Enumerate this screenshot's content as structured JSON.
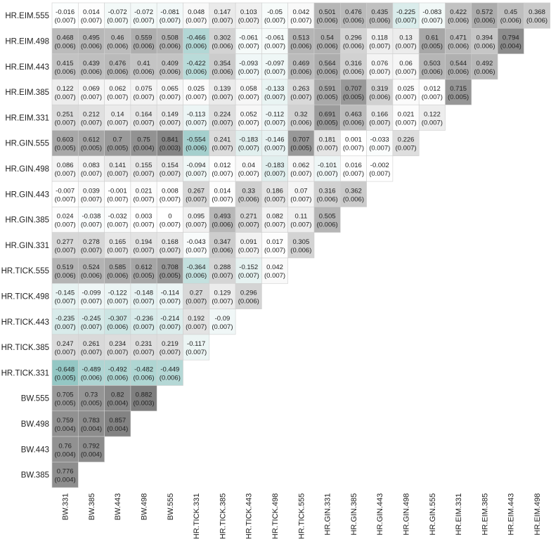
{
  "chart_data": {
    "type": "heatmap",
    "title": "",
    "xlabel": "",
    "ylabel": "",
    "color_scale": {
      "negative": "#5aa9a4",
      "zero": "#ffffff",
      "positive": "#6e6e6e"
    },
    "x_labels": [
      "BW.331",
      "BW.385",
      "BW.443",
      "BW.498",
      "BW.555",
      "HR.TICK.331",
      "HR.TICK.385",
      "HR.TICK.443",
      "HR.TICK.498",
      "HR.TICK.555",
      "HR.GIN.331",
      "HR.GIN.385",
      "HR.GIN.443",
      "HR.GIN.498",
      "HR.GIN.555",
      "HR.EIM.331",
      "HR.EIM.385",
      "HR.EIM.443",
      "HR.EIM.498"
    ],
    "rows": [
      {
        "label": "HR.EIM.555",
        "cells": [
          {
            "v": "-0.016",
            "se": "(0.007)"
          },
          {
            "v": "0.014",
            "se": "(0.007)"
          },
          {
            "v": "-0.072",
            "se": "(0.007)"
          },
          {
            "v": "-0.072",
            "se": "(0.007)"
          },
          {
            "v": "-0.081",
            "se": "(0.007)"
          },
          {
            "v": "0.048",
            "se": "(0.007)"
          },
          {
            "v": "0.147",
            "se": "(0.007)"
          },
          {
            "v": "0.103",
            "se": "(0.007)"
          },
          {
            "v": "-0.05",
            "se": "(0.007)"
          },
          {
            "v": "0.042",
            "se": "(0.007)"
          },
          {
            "v": "0.501",
            "se": "(0.006)"
          },
          {
            "v": "0.476",
            "se": "(0.006)"
          },
          {
            "v": "0.435",
            "se": "(0.006)"
          },
          {
            "v": "-0.225",
            "se": "(0.007)"
          },
          {
            "v": "-0.083",
            "se": "(0.007)"
          },
          {
            "v": "0.422",
            "se": "(0.006)"
          },
          {
            "v": "0.572",
            "se": "(0.006)"
          },
          {
            "v": "0.45",
            "se": "(0.006)"
          },
          {
            "v": "0.368",
            "se": "(0.006)"
          }
        ]
      },
      {
        "label": "HR.EIM.498",
        "cells": [
          {
            "v": "0.468",
            "se": "(0.006)"
          },
          {
            "v": "0.495",
            "se": "(0.006)"
          },
          {
            "v": "0.46",
            "se": "(0.006)"
          },
          {
            "v": "0.559",
            "se": "(0.006)"
          },
          {
            "v": "0.508",
            "se": "(0.006)"
          },
          {
            "v": "-0.466",
            "se": "(0.006)"
          },
          {
            "v": "0.302",
            "se": "(0.006)"
          },
          {
            "v": "-0.061",
            "se": "(0.007)"
          },
          {
            "v": "-0.061",
            "se": "(0.007)"
          },
          {
            "v": "0.513",
            "se": "(0.006)"
          },
          {
            "v": "0.54",
            "se": "(0.006)"
          },
          {
            "v": "0.296",
            "se": "(0.006)"
          },
          {
            "v": "0.118",
            "se": "(0.007)"
          },
          {
            "v": "0.13",
            "se": "(0.007)"
          },
          {
            "v": "0.61",
            "se": "(0.005)"
          },
          {
            "v": "0.471",
            "se": "(0.006)"
          },
          {
            "v": "0.394",
            "se": "(0.006)"
          },
          {
            "v": "0.794",
            "se": "(0.004)"
          }
        ]
      },
      {
        "label": "HR.EIM.443",
        "cells": [
          {
            "v": "0.415",
            "se": "(0.006)"
          },
          {
            "v": "0.439",
            "se": "(0.006)"
          },
          {
            "v": "0.476",
            "se": "(0.006)"
          },
          {
            "v": "0.41",
            "se": "(0.006)"
          },
          {
            "v": "0.409",
            "se": "(0.006)"
          },
          {
            "v": "-0.422",
            "se": "(0.006)"
          },
          {
            "v": "0.354",
            "se": "(0.006)"
          },
          {
            "v": "-0.093",
            "se": "(0.007)"
          },
          {
            "v": "-0.097",
            "se": "(0.007)"
          },
          {
            "v": "0.469",
            "se": "(0.006)"
          },
          {
            "v": "0.564",
            "se": "(0.006)"
          },
          {
            "v": "0.316",
            "se": "(0.006)"
          },
          {
            "v": "0.076",
            "se": "(0.007)"
          },
          {
            "v": "0.06",
            "se": "(0.007)"
          },
          {
            "v": "0.503",
            "se": "(0.006)"
          },
          {
            "v": "0.544",
            "se": "(0.006)"
          },
          {
            "v": "0.492",
            "se": "(0.006)"
          }
        ]
      },
      {
        "label": "HR.EIM.385",
        "cells": [
          {
            "v": "0.122",
            "se": "(0.007)"
          },
          {
            "v": "0.069",
            "se": "(0.007)"
          },
          {
            "v": "0.062",
            "se": "(0.007)"
          },
          {
            "v": "0.075",
            "se": "(0.007)"
          },
          {
            "v": "0.065",
            "se": "(0.007)"
          },
          {
            "v": "0.025",
            "se": "(0.007)"
          },
          {
            "v": "0.139",
            "se": "(0.007)"
          },
          {
            "v": "0.058",
            "se": "(0.007)"
          },
          {
            "v": "-0.133",
            "se": "(0.007)"
          },
          {
            "v": "0.263",
            "se": "(0.007)"
          },
          {
            "v": "0.591",
            "se": "(0.005)"
          },
          {
            "v": "0.707",
            "se": "(0.005)"
          },
          {
            "v": "0.319",
            "se": "(0.006)"
          },
          {
            "v": "0.025",
            "se": "(0.007)"
          },
          {
            "v": "0.012",
            "se": "(0.007)"
          },
          {
            "v": "0.715",
            "se": "(0.005)"
          }
        ]
      },
      {
        "label": "HR.EIM.331",
        "cells": [
          {
            "v": "0.251",
            "se": "(0.007)"
          },
          {
            "v": "0.212",
            "se": "(0.007)"
          },
          {
            "v": "0.14",
            "se": "(0.007)"
          },
          {
            "v": "0.164",
            "se": "(0.007)"
          },
          {
            "v": "0.149",
            "se": "(0.007)"
          },
          {
            "v": "-0.113",
            "se": "(0.007)"
          },
          {
            "v": "0.224",
            "se": "(0.007)"
          },
          {
            "v": "0.052",
            "se": "(0.007)"
          },
          {
            "v": "-0.112",
            "se": "(0.007)"
          },
          {
            "v": "0.32",
            "se": "(0.006)"
          },
          {
            "v": "0.691",
            "se": "(0.005)"
          },
          {
            "v": "0.463",
            "se": "(0.006)"
          },
          {
            "v": "0.166",
            "se": "(0.007)"
          },
          {
            "v": "0.021",
            "se": "(0.007)"
          },
          {
            "v": "0.122",
            "se": "(0.007)"
          }
        ]
      },
      {
        "label": "HR.GIN.555",
        "cells": [
          {
            "v": "0.603",
            "se": "(0.005)"
          },
          {
            "v": "0.612",
            "se": "(0.005)"
          },
          {
            "v": "0.7",
            "se": "(0.005)"
          },
          {
            "v": "0.75",
            "se": "(0.004)"
          },
          {
            "v": "0.841",
            "se": "(0.003)"
          },
          {
            "v": "-0.554",
            "se": "(0.006)"
          },
          {
            "v": "0.241",
            "se": "(0.007)"
          },
          {
            "v": "-0.183",
            "se": "(0.007)"
          },
          {
            "v": "-0.146",
            "se": "(0.007)"
          },
          {
            "v": "0.707",
            "se": "(0.005)"
          },
          {
            "v": "0.181",
            "se": "(0.007)"
          },
          {
            "v": "0.001",
            "se": "(0.007)"
          },
          {
            "v": "-0.033",
            "se": "(0.007)"
          },
          {
            "v": "0.226",
            "se": "(0.007)"
          }
        ]
      },
      {
        "label": "HR.GIN.498",
        "cells": [
          {
            "v": "0.086",
            "se": "(0.007)"
          },
          {
            "v": "0.083",
            "se": "(0.007)"
          },
          {
            "v": "0.141",
            "se": "(0.007)"
          },
          {
            "v": "0.155",
            "se": "(0.007)"
          },
          {
            "v": "0.154",
            "se": "(0.007)"
          },
          {
            "v": "-0.094",
            "se": "(0.007)"
          },
          {
            "v": "0.012",
            "se": "(0.007)"
          },
          {
            "v": "0.04",
            "se": "(0.007)"
          },
          {
            "v": "-0.183",
            "se": "(0.007)"
          },
          {
            "v": "0.062",
            "se": "(0.007)"
          },
          {
            "v": "-0.101",
            "se": "(0.007)"
          },
          {
            "v": "0.016",
            "se": "(0.007)"
          },
          {
            "v": "-0.002",
            "se": "(0.007)"
          }
        ]
      },
      {
        "label": "HR.GIN.443",
        "cells": [
          {
            "v": "-0.007",
            "se": "(0.007)"
          },
          {
            "v": "0.039",
            "se": "(0.007)"
          },
          {
            "v": "-0.001",
            "se": "(0.007)"
          },
          {
            "v": "0.021",
            "se": "(0.007)"
          },
          {
            "v": "0.008",
            "se": "(0.007)"
          },
          {
            "v": "0.267",
            "se": "(0.007)"
          },
          {
            "v": "0.014",
            "se": "(0.007)"
          },
          {
            "v": "0.33",
            "se": "(0.006)"
          },
          {
            "v": "0.186",
            "se": "(0.007)"
          },
          {
            "v": "0.07",
            "se": "(0.007)"
          },
          {
            "v": "0.316",
            "se": "(0.006)"
          },
          {
            "v": "0.362",
            "se": "(0.006)"
          }
        ]
      },
      {
        "label": "HR.GIN.385",
        "cells": [
          {
            "v": "0.024",
            "se": "(0.007)"
          },
          {
            "v": "-0.038",
            "se": "(0.007)"
          },
          {
            "v": "-0.032",
            "se": "(0.007)"
          },
          {
            "v": "0.003",
            "se": "(0.007)"
          },
          {
            "v": "0",
            "se": "(0.007)"
          },
          {
            "v": "0.095",
            "se": "(0.007)"
          },
          {
            "v": "0.493",
            "se": "(0.006)"
          },
          {
            "v": "0.271",
            "se": "(0.007)"
          },
          {
            "v": "0.082",
            "se": "(0.007)"
          },
          {
            "v": "0.11",
            "se": "(0.007)"
          },
          {
            "v": "0.505",
            "se": "(0.006)"
          }
        ]
      },
      {
        "label": "HR.GIN.331",
        "cells": [
          {
            "v": "0.277",
            "se": "(0.007)"
          },
          {
            "v": "0.278",
            "se": "(0.007)"
          },
          {
            "v": "0.165",
            "se": "(0.007)"
          },
          {
            "v": "0.194",
            "se": "(0.007)"
          },
          {
            "v": "0.168",
            "se": "(0.007)"
          },
          {
            "v": "-0.043",
            "se": "(0.007)"
          },
          {
            "v": "0.347",
            "se": "(0.006)"
          },
          {
            "v": "0.091",
            "se": "(0.007)"
          },
          {
            "v": "0.017",
            "se": "(0.007)"
          },
          {
            "v": "0.305",
            "se": "(0.006)"
          }
        ]
      },
      {
        "label": "HR.TICK.555",
        "cells": [
          {
            "v": "0.519",
            "se": "(0.006)"
          },
          {
            "v": "0.524",
            "se": "(0.006)"
          },
          {
            "v": "0.585",
            "se": "(0.006)"
          },
          {
            "v": "0.612",
            "se": "(0.005)"
          },
          {
            "v": "0.708",
            "se": "(0.005)"
          },
          {
            "v": "-0.364",
            "se": "(0.006)"
          },
          {
            "v": "0.288",
            "se": "(0.007)"
          },
          {
            "v": "-0.152",
            "se": "(0.007)"
          },
          {
            "v": "0.042",
            "se": "(0.007)"
          }
        ]
      },
      {
        "label": "HR.TICK.498",
        "cells": [
          {
            "v": "-0.145",
            "se": "(0.007)"
          },
          {
            "v": "-0.099",
            "se": "(0.007)"
          },
          {
            "v": "-0.122",
            "se": "(0.007)"
          },
          {
            "v": "-0.148",
            "se": "(0.007)"
          },
          {
            "v": "-0.114",
            "se": "(0.007)"
          },
          {
            "v": "0.27",
            "se": "(0.007)"
          },
          {
            "v": "0.129",
            "se": "(0.007)"
          },
          {
            "v": "0.296",
            "se": "(0.006)"
          }
        ]
      },
      {
        "label": "HR.TICK.443",
        "cells": [
          {
            "v": "-0.235",
            "se": "(0.007)"
          },
          {
            "v": "-0.245",
            "se": "(0.007)"
          },
          {
            "v": "-0.307",
            "se": "(0.006)"
          },
          {
            "v": "-0.236",
            "se": "(0.007)"
          },
          {
            "v": "-0.214",
            "se": "(0.007)"
          },
          {
            "v": "0.192",
            "se": "(0.007)"
          },
          {
            "v": "-0.09",
            "se": "(0.007)"
          }
        ]
      },
      {
        "label": "HR.TICK.385",
        "cells": [
          {
            "v": "0.247",
            "se": "(0.007)"
          },
          {
            "v": "0.261",
            "se": "(0.007)"
          },
          {
            "v": "0.234",
            "se": "(0.007)"
          },
          {
            "v": "0.231",
            "se": "(0.007)"
          },
          {
            "v": "0.219",
            "se": "(0.007)"
          },
          {
            "v": "-0.117",
            "se": "(0.007)"
          }
        ]
      },
      {
        "label": "HR.TICK.331",
        "cells": [
          {
            "v": "-0.648",
            "se": "(0.005)"
          },
          {
            "v": "-0.489",
            "se": "(0.006)"
          },
          {
            "v": "-0.492",
            "se": "(0.006)"
          },
          {
            "v": "-0.482",
            "se": "(0.006)"
          },
          {
            "v": "-0.449",
            "se": "(0.006)"
          }
        ]
      },
      {
        "label": "BW.555",
        "cells": [
          {
            "v": "0.705",
            "se": "(0.005)"
          },
          {
            "v": "0.73",
            "se": "(0.005)"
          },
          {
            "v": "0.82",
            "se": "(0.004)"
          },
          {
            "v": "0.882",
            "se": "(0.003)"
          }
        ]
      },
      {
        "label": "BW.498",
        "cells": [
          {
            "v": "0.759",
            "se": "(0.004)"
          },
          {
            "v": "0.783",
            "se": "(0.004)"
          },
          {
            "v": "0.857",
            "se": "(0.004)"
          }
        ]
      },
      {
        "label": "BW.443",
        "cells": [
          {
            "v": "0.76",
            "se": "(0.004)"
          },
          {
            "v": "0.792",
            "se": "(0.004)"
          }
        ]
      },
      {
        "label": "BW.385",
        "cells": [
          {
            "v": "0.776",
            "se": "(0.004)"
          }
        ]
      }
    ]
  }
}
